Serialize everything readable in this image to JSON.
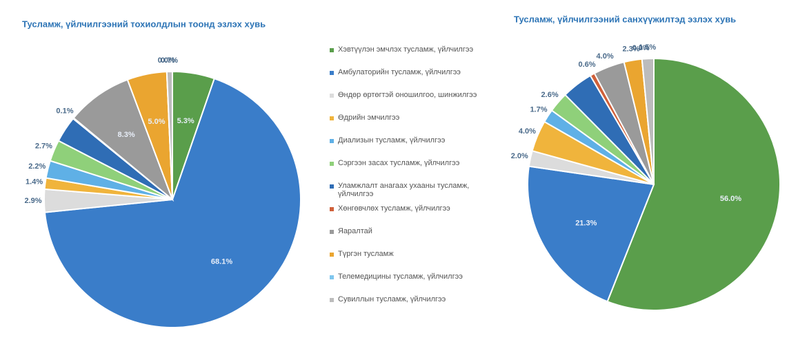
{
  "legend": {
    "labels": [
      "Хэвтүүлэн эмчлэх тусламж, үйлчилгээ",
      "Амбулаторийн тусламж, үйлчилгээ",
      "Өндөр өртөгтэй оношилгоо, шинжилгээ",
      "Өдрийн эмчилгээ",
      "Диализын тусламж, үйлчилгээ",
      "Сэргээн засах тусламж, үйлчилгээ",
      "Уламжлалт анагаах ухааны тусламж, үйлчилгээ",
      "Хөнгөвчлөх тусламж, үйлчилгээ",
      "Яаралтай",
      "Түргэн тусламж",
      "Телемедицины тусламж, үйлчилгээ",
      "Сувиллын тусламж, үйлчилгээ"
    ],
    "colors": [
      "#5a9e4b",
      "#3a7dc9",
      "#dcdcdc",
      "#f0b43c",
      "#5fb0e6",
      "#8fd07a",
      "#2f6db5",
      "#d0603a",
      "#9a9a9a",
      "#eaa530",
      "#7fc6ee",
      "#bcbcbc"
    ]
  },
  "chart_data": [
    {
      "type": "pie",
      "title": "Тусламж, үйлчилгээний тохиолдлын тоонд эзлэх хувь",
      "values": [
        5.3,
        68.1,
        2.9,
        1.4,
        2.2,
        2.7,
        3.3,
        0.1,
        8.3,
        5.0,
        0.0,
        0.7
      ],
      "value_labels": [
        "5.3%",
        "68.1%",
        "2.9%",
        "1.4%",
        "2.2%",
        "2.7%",
        null,
        "0.1%",
        "8.3%",
        "5.0%",
        "0.0%",
        "0.7%"
      ]
    },
    {
      "type": "pie",
      "title": "Тусламж, үйлчилгээний санхүүжилтэд эзлэх хувь",
      "values": [
        56.0,
        21.3,
        2.0,
        4.0,
        1.7,
        2.6,
        4.0,
        0.6,
        4.0,
        2.3,
        0.0,
        1.5
      ],
      "value_labels": [
        "56.0%",
        "21.3%",
        "2.0%",
        "4.0%",
        "1.7%",
        "2.6%",
        null,
        "0.6%",
        "4.0%",
        "2.3%",
        "0.0%",
        "1.5%"
      ]
    }
  ]
}
